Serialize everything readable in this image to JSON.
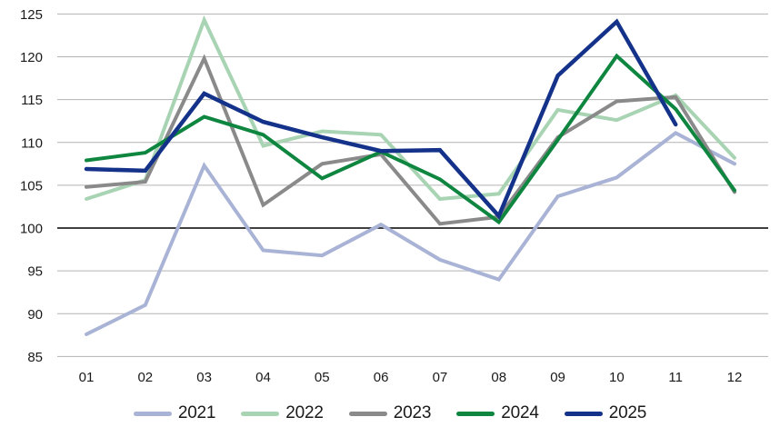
{
  "chart_data": {
    "type": "line",
    "title": "",
    "xlabel": "",
    "ylabel": "",
    "x_labels": [
      "01",
      "02",
      "03",
      "04",
      "05",
      "06",
      "07",
      "08",
      "09",
      "10",
      "11",
      "12"
    ],
    "ylim": [
      85,
      125
    ],
    "ytick_step": 5,
    "baseline_value": 100,
    "grid": "horizontal",
    "legend_position": "bottom",
    "colors": {
      "gridline": "#b3b3b3",
      "baseline": "#000000",
      "tick_text": "#1a1a1a"
    },
    "series": [
      {
        "name": "2021",
        "color": "#a9b3d6",
        "width": 4,
        "values": [
          87.6,
          91.0,
          107.3,
          97.4,
          96.8,
          100.4,
          96.3,
          94.0,
          103.7,
          105.9,
          111.1,
          107.5
        ]
      },
      {
        "name": "2022",
        "color": "#a8d4b4",
        "width": 4,
        "values": [
          103.4,
          105.6,
          124.3,
          109.6,
          111.3,
          110.9,
          103.4,
          104.0,
          113.8,
          112.6,
          115.5,
          108.2
        ]
      },
      {
        "name": "2023",
        "color": "#8a8a8a",
        "width": 4,
        "values": [
          104.8,
          105.4,
          119.8,
          102.7,
          107.5,
          108.6,
          100.5,
          101.3,
          110.6,
          114.8,
          115.3,
          104.2
        ]
      },
      {
        "name": "2024",
        "color": "#0e8640",
        "width": 4,
        "values": [
          107.9,
          108.8,
          113.0,
          110.9,
          105.8,
          108.9,
          105.7,
          100.7,
          110.3,
          120.1,
          113.9,
          104.4
        ]
      },
      {
        "name": "2025",
        "color": "#14328a",
        "width": 4.5,
        "values": [
          106.9,
          106.7,
          115.7,
          112.4,
          110.6,
          109.0,
          109.1,
          101.4,
          117.8,
          124.1,
          112.1,
          null
        ]
      }
    ]
  }
}
